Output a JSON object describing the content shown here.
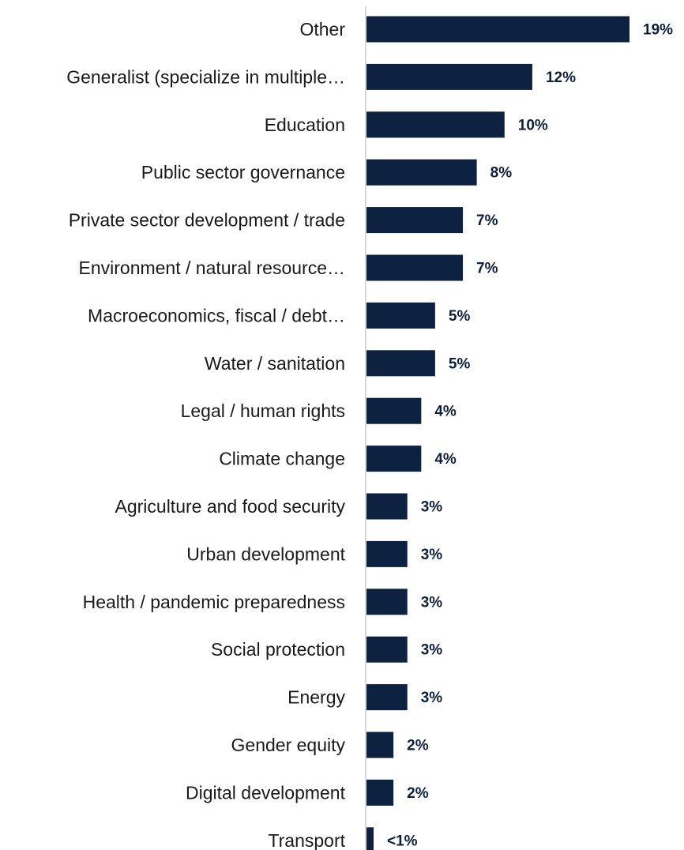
{
  "chart_data": {
    "type": "bar",
    "orientation": "horizontal",
    "title": "",
    "xlabel": "",
    "ylabel": "",
    "xlim": [
      0,
      20
    ],
    "grid": false,
    "legend": "none",
    "bar_color": "#0d2240",
    "axis_color": "#d9d9d9",
    "categories": [
      "Other",
      "Generalist (specialize in multiple…",
      "Education",
      "Public sector governance",
      "Private sector development / trade",
      "Environment / natural resource…",
      "Macroeconomics, fiscal / debt…",
      "Water / sanitation",
      "Legal / human rights ",
      "Climate change",
      "Agriculture and food security",
      "Urban development",
      "Health / pandemic preparedness",
      "Social protection",
      "Energy ",
      "Gender equity",
      "Digital development",
      "Transport"
    ],
    "values": [
      19,
      12,
      10,
      8,
      7,
      7,
      5,
      5,
      4,
      4,
      3,
      3,
      3,
      3,
      3,
      2,
      2,
      0.5
    ],
    "value_labels": [
      "19%",
      "12%",
      "10%",
      "8%",
      "7%",
      "7%",
      "5%",
      "5%",
      "4%",
      "4%",
      "3%",
      "3%",
      "3%",
      "3%",
      "3%",
      "2%",
      "2%",
      "<1%"
    ]
  }
}
